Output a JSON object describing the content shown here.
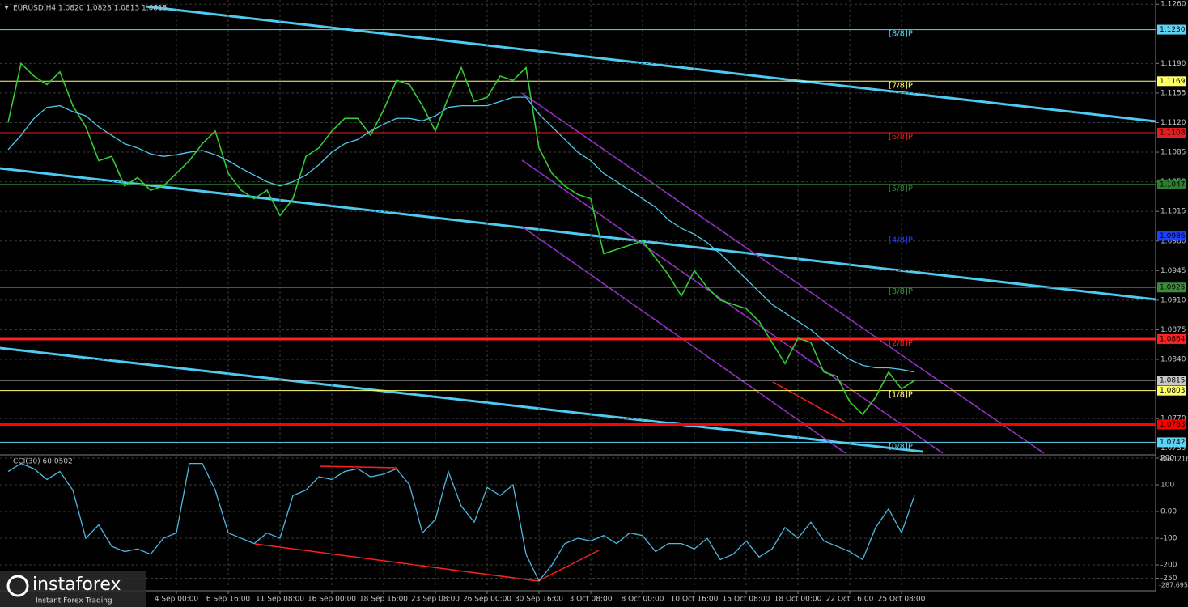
{
  "chart_data": [
    {
      "type": "line",
      "title": "EURUSD,H4 1.0820 1.0828 1.0813 1.0815",
      "categories": [
        null,
        null,
        null,
        null,
        null,
        null,
        null,
        null,
        null,
        null,
        null,
        null,
        null,
        "4 Sep 00:00",
        null,
        null,
        null,
        "6 Sep 16:00",
        null,
        null,
        null,
        "11 Sep 08:00",
        null,
        null,
        null,
        "16 Sep 00:00",
        null,
        null,
        null,
        "18 Sep 16:00",
        null,
        null,
        null,
        "23 Sep 08:00",
        null,
        null,
        null,
        "26 Sep 00:00",
        null,
        null,
        null,
        "30 Sep 16:00",
        null,
        null,
        null,
        "3 Oct 08:00",
        null,
        null,
        null,
        "8 Oct 00:00",
        null,
        null,
        null,
        "10 Oct 16:00",
        null,
        null,
        null,
        "15 Oct 08:00",
        null,
        null,
        null,
        "18 Oct 00:00",
        null,
        null,
        null,
        "22 Oct 16:00",
        null,
        null,
        null,
        "25 Oct 08:00",
        null
      ],
      "series": [
        {
          "color": "#33cc33",
          "values": [
            1.112,
            1.119,
            1.1175,
            1.1165,
            1.118,
            1.114,
            1.1115,
            1.1075,
            1.108,
            1.1045,
            1.1055,
            1.104,
            1.1045,
            1.106,
            1.1075,
            1.1095,
            1.111,
            1.106,
            1.104,
            1.103,
            1.104,
            1.101,
            1.103,
            1.108,
            1.109,
            1.111,
            1.1125,
            1.1125,
            1.1105,
            1.1135,
            1.117,
            1.1165,
            1.114,
            1.111,
            1.115,
            1.1185,
            1.1145,
            1.115,
            1.1175,
            1.117,
            1.1185,
            1.109,
            1.106,
            1.1045,
            1.1035,
            1.103,
            1.0965,
            1.097,
            1.0975,
            1.098,
            1.096,
            1.094,
            1.0915,
            1.0945,
            1.0925,
            1.091,
            1.0905,
            1.09,
            1.0885,
            1.086,
            1.0835,
            1.0865,
            1.086,
            1.0825,
            1.082,
            1.079,
            1.0775,
            1.0795,
            1.0825,
            1.0805,
            1.0815
          ]
        },
        {
          "color": "#4ec9e8",
          "values": [
            1.1088,
            1.1105,
            1.1125,
            1.1138,
            1.114,
            1.1133,
            1.1128,
            1.1115,
            1.1105,
            1.1095,
            1.109,
            1.1083,
            1.108,
            1.1082,
            1.1085,
            1.1087,
            1.1082,
            1.1075,
            1.1066,
            1.1058,
            1.105,
            1.1045,
            1.105,
            1.1058,
            1.107,
            1.1085,
            1.1095,
            1.11,
            1.111,
            1.1118,
            1.1125,
            1.1125,
            1.1122,
            1.1128,
            1.1138,
            1.114,
            1.114,
            1.114,
            1.1145,
            1.115,
            1.115,
            1.113,
            1.1115,
            1.11,
            1.1085,
            1.1075,
            1.106,
            1.105,
            1.104,
            1.103,
            1.102,
            1.1005,
            1.0995,
            1.0988,
            1.0978,
            1.0965,
            1.095,
            1.0935,
            1.092,
            1.0905,
            1.0895,
            1.0885,
            1.0875,
            1.0862,
            1.085,
            1.084,
            1.0833,
            1.083,
            1.083,
            1.0828,
            1.0825
          ]
        }
      ],
      "ylim": [
        1.0729,
        1.1265
      ],
      "yticks": [
        {
          "value": 1.126,
          "label": "1.1260"
        },
        {
          "value": 1.119,
          "label": "1.1190"
        },
        1.1155,
        {
          "value": 1.112,
          "label": "1.1120"
        },
        1.1085,
        {
          "value": 1.105,
          "label": "1.1050"
        },
        1.1015,
        {
          "value": 1.098,
          "label": "1.0980"
        },
        1.0945,
        {
          "value": 1.091,
          "label": "1.0910"
        },
        1.0875,
        {
          "value": 1.084,
          "label": "1.0840"
        },
        {
          "value": 1.077,
          "label": "1.0770"
        },
        1.0735
      ],
      "grid": true,
      "levels": [
        {
          "name": "[8/8]P",
          "value": 1.123,
          "label": "1.1230",
          "color": "#5fd3f3"
        },
        {
          "name": "[7/8]P",
          "value": 1.1169,
          "label": "1.1169",
          "color": "#ffff66"
        },
        {
          "name": "[6/8]P",
          "value": 1.1108,
          "label": "1.1108",
          "color": "#e02020"
        },
        {
          "name": "[5/8]P",
          "value": 1.1047,
          "label": "1.1047",
          "color": "#2e7d32"
        },
        {
          "name": "[4/8]P",
          "value": 1.0986,
          "label": "1.0986",
          "color": "#1f3fff"
        },
        {
          "name": "[3/8]P",
          "value": 1.0925,
          "label": "1.0925",
          "color": "#3c8c3c"
        },
        {
          "name": "[2/8]P",
          "value": 1.0864,
          "label": "1.0864",
          "color": "#ff2020"
        },
        {
          "name": "[1/8]P",
          "value": 1.0803,
          "label": "1.0803",
          "color": "#ffff66"
        },
        {
          "name": "[0/8]P",
          "value": 1.0742,
          "label": "1.0742",
          "color": "#5fd3f3"
        }
      ],
      "price_lines": [
        {
          "value": 1.0763,
          "label": "1.0763",
          "color": "#ff0000"
        },
        {
          "value": 1.0815,
          "label": "1.0815",
          "color": "#c8c8c8"
        }
      ]
    },
    {
      "type": "line",
      "title": "CCI(30) 60.0502",
      "series": [
        {
          "color": "#4fb7e0",
          "values": [
            150,
            180,
            160,
            120,
            150,
            80,
            -100,
            -50,
            -130,
            -150,
            -140,
            -160,
            -100,
            -80,
            180,
            180,
            80,
            -80,
            -100,
            -120,
            -80,
            -100,
            60,
            80,
            130,
            120,
            150,
            160,
            130,
            140,
            160,
            100,
            -80,
            -30,
            150,
            20,
            -40,
            90,
            60,
            100,
            -160,
            -260,
            -200,
            -120,
            -100,
            -110,
            -90,
            -120,
            -80,
            -90,
            -150,
            -120,
            -120,
            -140,
            -100,
            -180,
            -160,
            -110,
            -170,
            -140,
            -60,
            -100,
            -40,
            -110,
            -130,
            -150,
            -180,
            -60,
            10,
            -80,
            60.0502
          ]
        }
      ],
      "ylim": [
        -287.695,
        206.1216
      ],
      "yticks": [
        200,
        100,
        {
          "value": 0,
          "label": "0.00"
        },
        -100,
        -200,
        -250
      ],
      "grid": true
    }
  ],
  "watermark": {
    "brand": "instaforex",
    "tagline": "Instant Forex Trading"
  }
}
